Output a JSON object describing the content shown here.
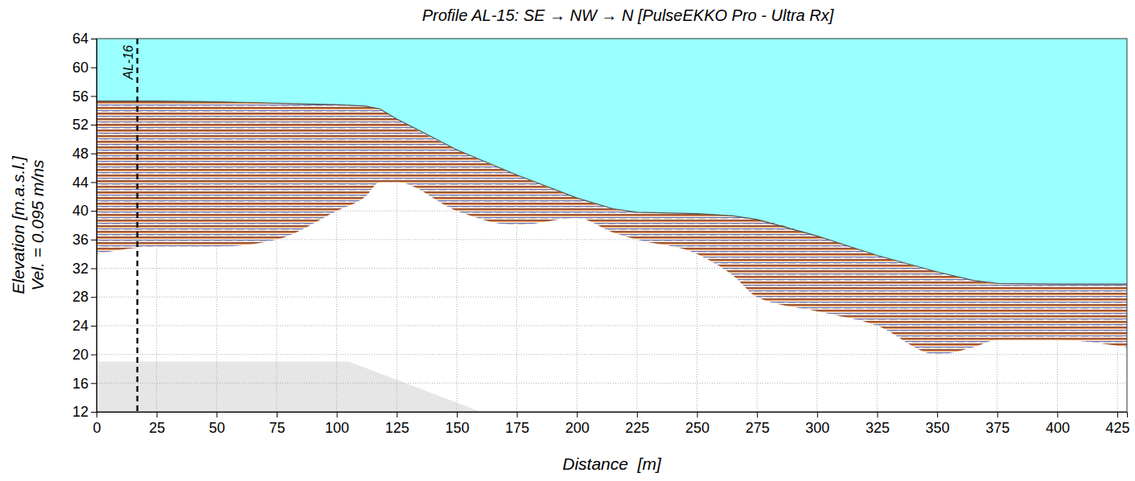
{
  "chart_data": {
    "type": "area",
    "title": "Profile AL-15: SE → NW → N [PulseEKKO Pro - Ultra Rx]",
    "x_label": "Distance  [m]",
    "y_label": [
      "Elevation [m.a.s.l.]",
      "Vel. = 0.095 m/ns"
    ],
    "x": [
      0,
      25,
      50,
      75,
      100,
      112,
      118,
      125,
      150,
      175,
      200,
      215,
      225,
      250,
      265,
      275,
      300,
      325,
      350,
      365,
      375,
      400,
      429
    ],
    "series": [
      {
        "type": "area",
        "color": "#99ffff",
        "values": [
          55.3,
          55.3,
          55.2,
          55.0,
          54.8,
          54.6,
          54.2,
          52.8,
          48.5,
          45.0,
          41.8,
          40.3,
          39.8,
          39.6,
          39.3,
          38.8,
          36.5,
          33.8,
          31.5,
          30.3,
          29.9,
          29.8,
          29.8
        ]
      },
      {
        "type": "band",
        "color": "#8b3a1a",
        "values": [
          34,
          35,
          35,
          36,
          40,
          42,
          44,
          44,
          40,
          38,
          39,
          37,
          36,
          34,
          31,
          28,
          26,
          24,
          20,
          21,
          22,
          22,
          21
        ]
      }
    ],
    "shaded_region": {
      "x": [
        0,
        105,
        160
      ],
      "values": [
        19,
        19,
        12
      ],
      "color": "#e6e6e6"
    },
    "annotations": [
      {
        "text": "AL-16",
        "x": 17,
        "line_style": "dashed"
      }
    ],
    "xlim": [
      0,
      429
    ],
    "xticks": [
      0,
      25,
      50,
      75,
      100,
      125,
      150,
      175,
      200,
      225,
      250,
      275,
      300,
      325,
      350,
      375,
      400,
      425
    ],
    "ylim": [
      12,
      64
    ],
    "yticks": [
      12,
      16,
      20,
      24,
      28,
      32,
      36,
      40,
      44,
      48,
      52,
      56,
      60,
      64
    ],
    "grid": true
  }
}
